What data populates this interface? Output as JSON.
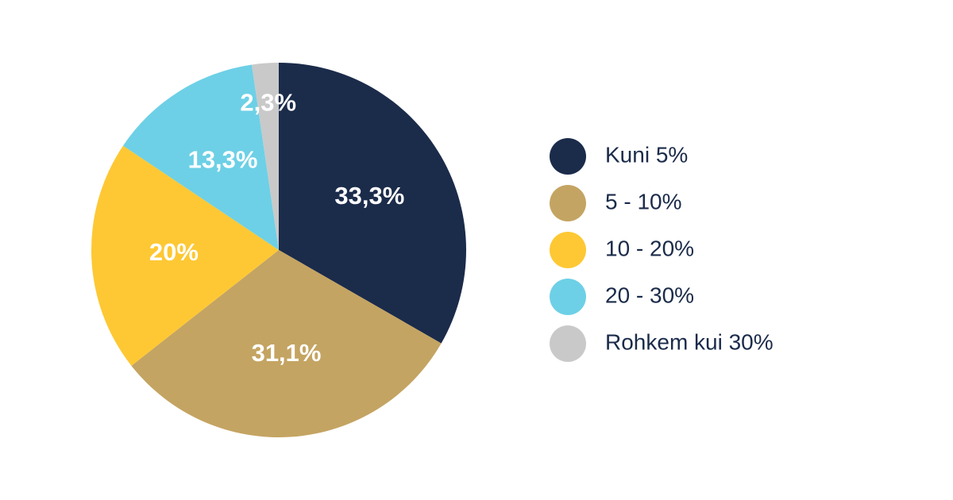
{
  "chart_data": {
    "type": "pie",
    "categories": [
      "Kuni 5%",
      "5 - 10%",
      "10 - 20%",
      "20 - 30%",
      "Rohkem kui 30%"
    ],
    "values": [
      33.3,
      31.1,
      20,
      13.3,
      2.3
    ],
    "value_labels": [
      "33,3%",
      "31,1%",
      "20%",
      "13,3%",
      "2,3%"
    ],
    "colors": [
      "#1b2b4a",
      "#c4a462",
      "#fec834",
      "#6dd0e6",
      "#c9c9c9"
    ]
  }
}
